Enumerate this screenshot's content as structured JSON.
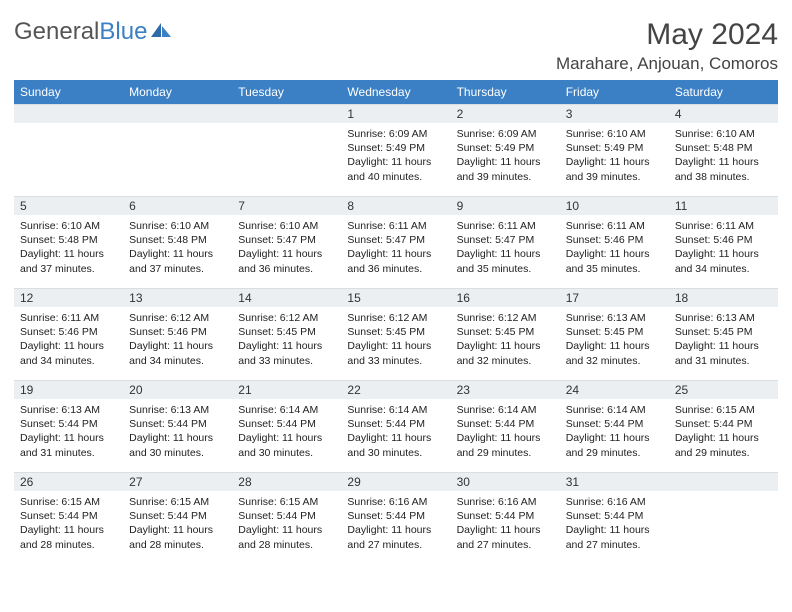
{
  "brand": {
    "part1": "General",
    "part2": "Blue"
  },
  "title": "May 2024",
  "location": "Marahare, Anjouan, Comoros",
  "colors": {
    "header_bg": "#3b7fc4",
    "header_text": "#ffffff",
    "daynum_bg": "#eceff1",
    "text": "#333333",
    "divider": "#3b7fc4"
  },
  "days_of_week": [
    "Sunday",
    "Monday",
    "Tuesday",
    "Wednesday",
    "Thursday",
    "Friday",
    "Saturday"
  ],
  "weeks": [
    [
      null,
      null,
      null,
      {
        "n": "1",
        "sr": "6:09 AM",
        "ss": "5:49 PM",
        "dl": "11 hours and 40 minutes."
      },
      {
        "n": "2",
        "sr": "6:09 AM",
        "ss": "5:49 PM",
        "dl": "11 hours and 39 minutes."
      },
      {
        "n": "3",
        "sr": "6:10 AM",
        "ss": "5:49 PM",
        "dl": "11 hours and 39 minutes."
      },
      {
        "n": "4",
        "sr": "6:10 AM",
        "ss": "5:48 PM",
        "dl": "11 hours and 38 minutes."
      }
    ],
    [
      {
        "n": "5",
        "sr": "6:10 AM",
        "ss": "5:48 PM",
        "dl": "11 hours and 37 minutes."
      },
      {
        "n": "6",
        "sr": "6:10 AM",
        "ss": "5:48 PM",
        "dl": "11 hours and 37 minutes."
      },
      {
        "n": "7",
        "sr": "6:10 AM",
        "ss": "5:47 PM",
        "dl": "11 hours and 36 minutes."
      },
      {
        "n": "8",
        "sr": "6:11 AM",
        "ss": "5:47 PM",
        "dl": "11 hours and 36 minutes."
      },
      {
        "n": "9",
        "sr": "6:11 AM",
        "ss": "5:47 PM",
        "dl": "11 hours and 35 minutes."
      },
      {
        "n": "10",
        "sr": "6:11 AM",
        "ss": "5:46 PM",
        "dl": "11 hours and 35 minutes."
      },
      {
        "n": "11",
        "sr": "6:11 AM",
        "ss": "5:46 PM",
        "dl": "11 hours and 34 minutes."
      }
    ],
    [
      {
        "n": "12",
        "sr": "6:11 AM",
        "ss": "5:46 PM",
        "dl": "11 hours and 34 minutes."
      },
      {
        "n": "13",
        "sr": "6:12 AM",
        "ss": "5:46 PM",
        "dl": "11 hours and 34 minutes."
      },
      {
        "n": "14",
        "sr": "6:12 AM",
        "ss": "5:45 PM",
        "dl": "11 hours and 33 minutes."
      },
      {
        "n": "15",
        "sr": "6:12 AM",
        "ss": "5:45 PM",
        "dl": "11 hours and 33 minutes."
      },
      {
        "n": "16",
        "sr": "6:12 AM",
        "ss": "5:45 PM",
        "dl": "11 hours and 32 minutes."
      },
      {
        "n": "17",
        "sr": "6:13 AM",
        "ss": "5:45 PM",
        "dl": "11 hours and 32 minutes."
      },
      {
        "n": "18",
        "sr": "6:13 AM",
        "ss": "5:45 PM",
        "dl": "11 hours and 31 minutes."
      }
    ],
    [
      {
        "n": "19",
        "sr": "6:13 AM",
        "ss": "5:44 PM",
        "dl": "11 hours and 31 minutes."
      },
      {
        "n": "20",
        "sr": "6:13 AM",
        "ss": "5:44 PM",
        "dl": "11 hours and 30 minutes."
      },
      {
        "n": "21",
        "sr": "6:14 AM",
        "ss": "5:44 PM",
        "dl": "11 hours and 30 minutes."
      },
      {
        "n": "22",
        "sr": "6:14 AM",
        "ss": "5:44 PM",
        "dl": "11 hours and 30 minutes."
      },
      {
        "n": "23",
        "sr": "6:14 AM",
        "ss": "5:44 PM",
        "dl": "11 hours and 29 minutes."
      },
      {
        "n": "24",
        "sr": "6:14 AM",
        "ss": "5:44 PM",
        "dl": "11 hours and 29 minutes."
      },
      {
        "n": "25",
        "sr": "6:15 AM",
        "ss": "5:44 PM",
        "dl": "11 hours and 29 minutes."
      }
    ],
    [
      {
        "n": "26",
        "sr": "6:15 AM",
        "ss": "5:44 PM",
        "dl": "11 hours and 28 minutes."
      },
      {
        "n": "27",
        "sr": "6:15 AM",
        "ss": "5:44 PM",
        "dl": "11 hours and 28 minutes."
      },
      {
        "n": "28",
        "sr": "6:15 AM",
        "ss": "5:44 PM",
        "dl": "11 hours and 28 minutes."
      },
      {
        "n": "29",
        "sr": "6:16 AM",
        "ss": "5:44 PM",
        "dl": "11 hours and 27 minutes."
      },
      {
        "n": "30",
        "sr": "6:16 AM",
        "ss": "5:44 PM",
        "dl": "11 hours and 27 minutes."
      },
      {
        "n": "31",
        "sr": "6:16 AM",
        "ss": "5:44 PM",
        "dl": "11 hours and 27 minutes."
      },
      null
    ]
  ],
  "labels": {
    "sunrise": "Sunrise:",
    "sunset": "Sunset:",
    "daylight": "Daylight:"
  }
}
